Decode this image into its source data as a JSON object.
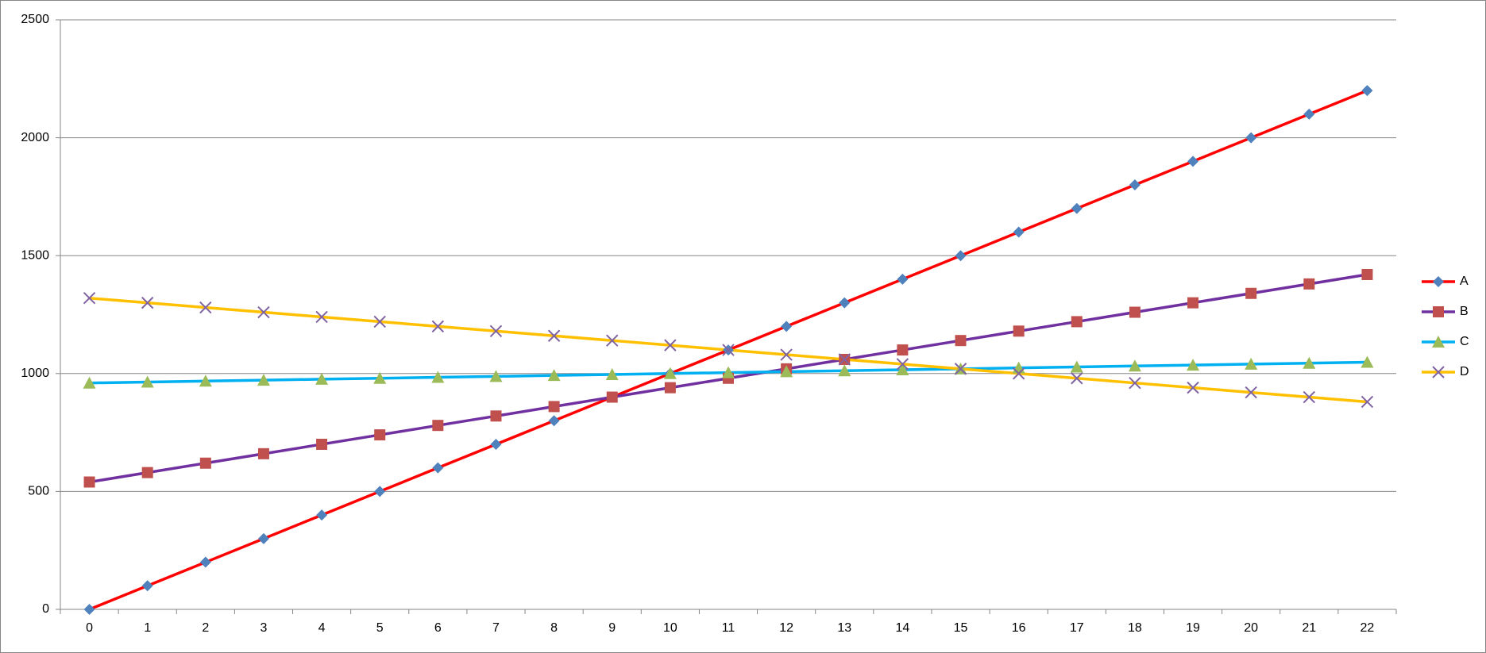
{
  "chart_data": {
    "type": "line",
    "categories": [
      0,
      1,
      2,
      3,
      4,
      5,
      6,
      7,
      8,
      9,
      10,
      11,
      12,
      13,
      14,
      15,
      16,
      17,
      18,
      19,
      20,
      21,
      22
    ],
    "series": [
      {
        "name": "A",
        "color": "#ff0000",
        "marker": "diamond",
        "marker_color": "#4f81bd",
        "values": [
          0,
          100,
          200,
          300,
          400,
          500,
          600,
          700,
          800,
          900,
          1000,
          1100,
          1200,
          1300,
          1400,
          1500,
          1600,
          1700,
          1800,
          1900,
          2000,
          2100,
          2200
        ]
      },
      {
        "name": "B",
        "color": "#7030a0",
        "marker": "square",
        "marker_color": "#c0504d",
        "values": [
          540,
          580,
          620,
          660,
          700,
          740,
          780,
          820,
          860,
          900,
          940,
          980,
          1020,
          1060,
          1100,
          1140,
          1180,
          1220,
          1260,
          1300,
          1340,
          1380,
          1420
        ]
      },
      {
        "name": "C",
        "color": "#00b0f0",
        "marker": "triangle",
        "marker_color": "#9bbb59",
        "values": [
          960,
          964,
          968,
          972,
          976,
          980,
          984,
          988,
          992,
          996,
          1000,
          1004,
          1008,
          1012,
          1016,
          1020,
          1024,
          1028,
          1032,
          1036,
          1040,
          1044,
          1048
        ]
      },
      {
        "name": "D",
        "color": "#ffc000",
        "marker": "x",
        "marker_color": "#8064a2",
        "values": [
          1320,
          1300,
          1280,
          1260,
          1240,
          1220,
          1200,
          1180,
          1160,
          1140,
          1120,
          1100,
          1080,
          1060,
          1040,
          1020,
          1000,
          980,
          960,
          940,
          920,
          900,
          880
        ]
      }
    ],
    "ylim": [
      0,
      2500
    ],
    "yticks": [
      0,
      500,
      1000,
      1500,
      2000,
      2500
    ],
    "grid": true,
    "legend": "right"
  }
}
